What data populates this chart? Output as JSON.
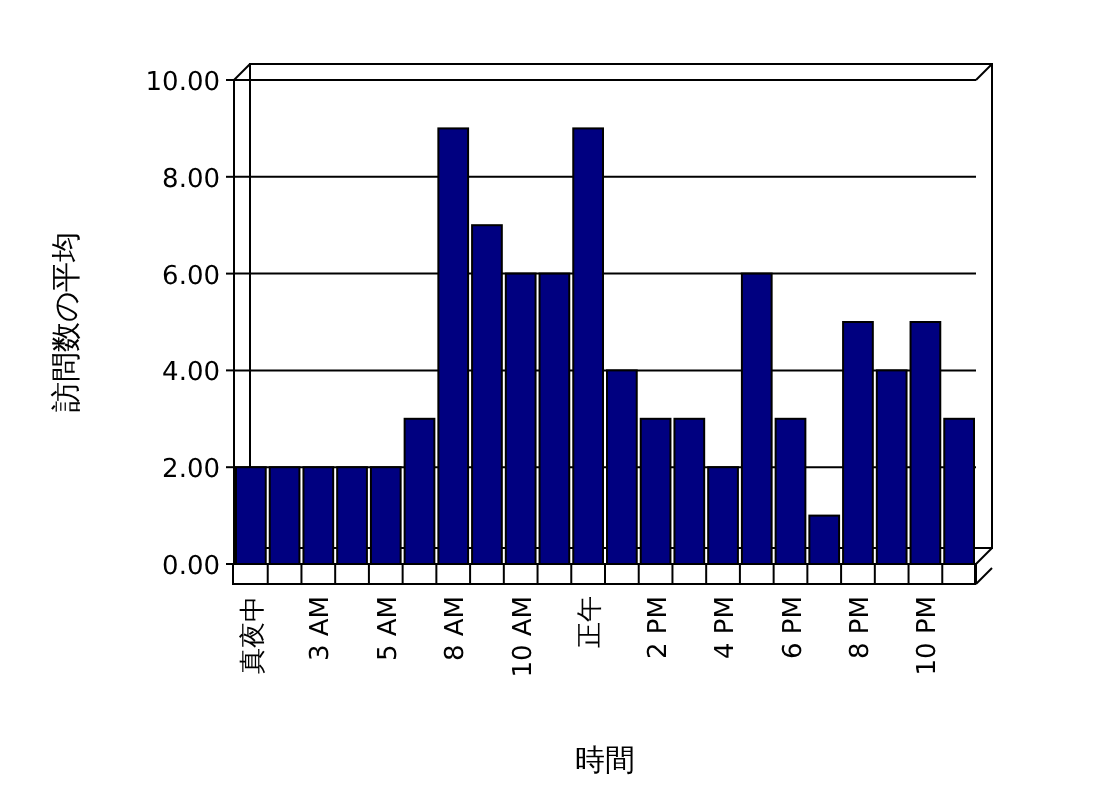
{
  "chart_data": {
    "type": "bar",
    "xlabel": "時間",
    "ylabel": "訪問数の平均",
    "categories": [
      "真夜中",
      null,
      "3 AM",
      null,
      "5 AM",
      null,
      "8 AM",
      null,
      "10 AM",
      null,
      "正午",
      null,
      "2 PM",
      null,
      "4 PM",
      null,
      "6 PM",
      null,
      "8 PM",
      null,
      "10 PM",
      null
    ],
    "values": [
      2,
      2,
      2,
      2,
      2,
      3,
      9,
      7,
      6,
      6,
      9,
      4,
      3,
      3,
      2,
      6,
      3,
      1,
      5,
      4,
      5,
      3
    ],
    "color": "#000080",
    "ylim": [
      0,
      10
    ],
    "yticks": [
      {
        "value": 0,
        "label": "0.00"
      },
      {
        "value": 2,
        "label": "2.00"
      },
      {
        "value": 4,
        "label": "4.00"
      },
      {
        "value": 6,
        "label": "6.00"
      },
      {
        "value": 8,
        "label": "8.00"
      },
      {
        "value": 10,
        "label": "10.00"
      }
    ],
    "grid": "y",
    "legend": false
  }
}
